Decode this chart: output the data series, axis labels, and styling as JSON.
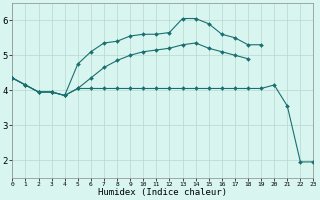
{
  "background_color": "#d8f5f0",
  "grid_color": "#b8d8d0",
  "line_color": "#1a7070",
  "xlabel": "Humidex (Indice chaleur)",
  "xlim": [
    0,
    23
  ],
  "ylim": [
    1.5,
    6.5
  ],
  "yticks": [
    2,
    3,
    4,
    5,
    6
  ],
  "xticks": [
    0,
    1,
    2,
    3,
    4,
    5,
    6,
    7,
    8,
    9,
    10,
    11,
    12,
    13,
    14,
    15,
    16,
    17,
    18,
    19,
    20,
    21,
    22,
    23
  ],
  "line1_x": [
    0,
    1,
    2,
    3,
    4,
    5,
    6,
    7,
    8,
    9,
    10,
    11,
    12,
    13,
    14,
    15,
    16,
    17,
    18,
    19
  ],
  "line1_y": [
    4.35,
    4.15,
    3.95,
    3.95,
    3.85,
    4.75,
    5.1,
    5.35,
    5.4,
    5.55,
    5.6,
    5.6,
    5.65,
    6.05,
    6.05,
    5.9,
    5.6,
    5.5,
    5.3,
    5.3
  ],
  "line2_x": [
    0,
    1,
    2,
    3,
    4,
    5,
    6,
    7,
    8,
    9,
    10,
    11,
    12,
    13,
    14,
    15,
    16,
    17,
    18
  ],
  "line2_y": [
    4.35,
    4.15,
    3.95,
    3.95,
    3.85,
    4.05,
    4.35,
    4.65,
    4.85,
    5.0,
    5.1,
    5.15,
    5.2,
    5.3,
    5.35,
    5.2,
    5.1,
    5.0,
    4.9
  ],
  "line3_x": [
    0,
    1,
    2,
    3,
    4,
    5,
    6,
    7,
    8,
    9,
    10,
    11,
    12,
    13,
    14,
    15,
    16,
    17,
    18,
    19,
    20,
    21,
    22,
    23
  ],
  "line3_y": [
    4.35,
    4.15,
    3.95,
    3.95,
    3.85,
    4.05,
    4.05,
    4.05,
    4.05,
    4.05,
    4.05,
    4.05,
    4.05,
    4.05,
    4.05,
    4.05,
    4.05,
    4.05,
    4.05,
    4.05,
    4.15,
    3.55,
    1.95,
    1.95
  ]
}
